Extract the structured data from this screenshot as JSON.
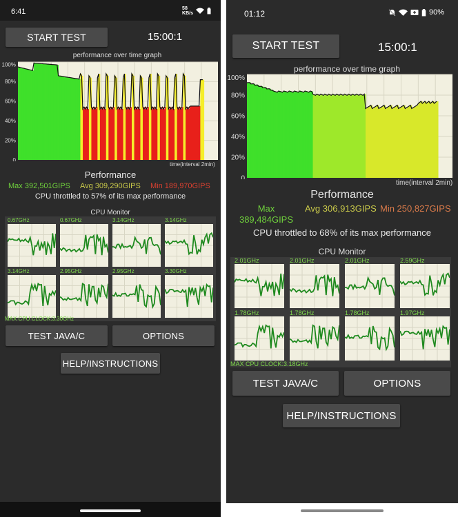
{
  "left": {
    "status": {
      "time": "6:41",
      "speed_top": "58",
      "speed_bottom": "KB/s"
    },
    "start_label": "START TEST",
    "timer": "15:00:1",
    "graph_title": "performance over time graph",
    "y_ticks": [
      "100%",
      "80%",
      "60%",
      "40%",
      "20%",
      "0"
    ],
    "interval": "time(interval 2min)",
    "perf_title": "Performance",
    "max": "Max 392,501GIPS",
    "avg": "Avg 309,290GIPS",
    "min": "Min 189,970GIPS",
    "throttle": "CPU throttled to 57% of its max performance",
    "cpu_title": "CPU Monitor",
    "freqs": [
      "0.67GHz",
      "0.67GHz",
      "3.14GHz",
      "3.14GHz",
      "3.14GHz",
      "2.95GHz",
      "2.95GHz",
      "3.30GHz"
    ],
    "max_clock": "MAX CPU CLOCK:3.30GHz",
    "test_java": "TEST JAVA/C",
    "options": "OPTIONS",
    "help": "HELP/INSTRUCTIONS"
  },
  "right": {
    "status": {
      "time": "01:12",
      "battery": "90%"
    },
    "start_label": "START TEST",
    "timer": "15:00:1",
    "graph_title": "performance over time graph",
    "y_ticks": [
      "100%",
      "80%",
      "60%",
      "40%",
      "20%",
      "0"
    ],
    "interval": "time(interval 2min)",
    "perf_title": "Performance",
    "max_1": "Max",
    "max_2": "389,484GIPS",
    "avg": "Avg 306,913GIPS",
    "min": "Min 250,827GIPS",
    "throttle": "CPU throttled to 68% of its max performance",
    "cpu_title": "CPU Monitor",
    "freqs": [
      "2.01GHz",
      "2.01GHz",
      "2.01GHz",
      "2.59GHz",
      "1.78GHz",
      "1.78GHz",
      "1.78GHz",
      "1.97GHz"
    ],
    "max_clock": "MAX CPU CLOCK:3.18GHz",
    "test_java": "TEST JAVA/C",
    "options": "OPTIONS",
    "help": "HELP/INSTRUCTIONS"
  },
  "colors": {
    "max": "#6fcf3c",
    "avg": "#c8c84a",
    "min": "#d94030",
    "bg": "#2b2b2b"
  }
}
